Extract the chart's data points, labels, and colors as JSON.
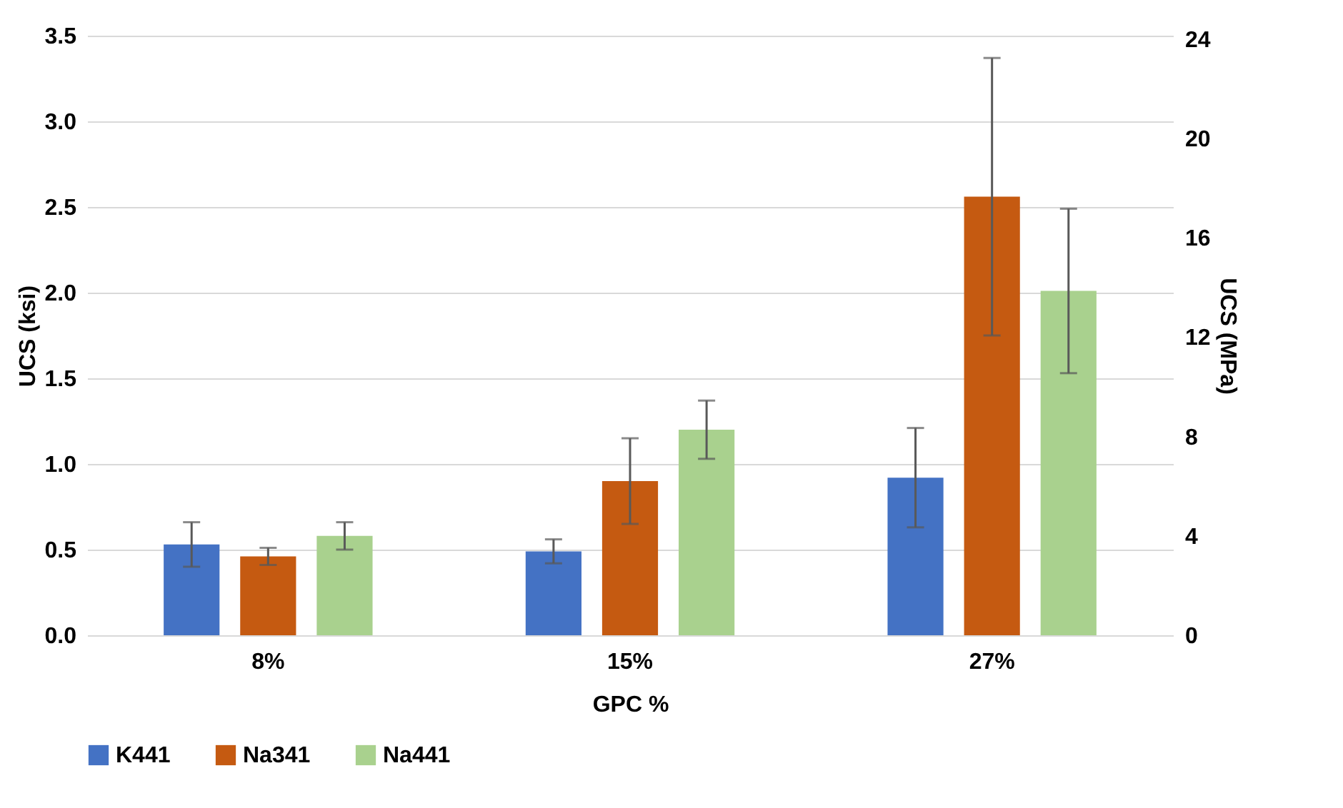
{
  "chart_data": {
    "type": "bar",
    "xlabel": "GPC %",
    "ylabel": "UCS (ksi)",
    "y2label": "UCS (MPa)",
    "categories": [
      "8%",
      "15%",
      "27%"
    ],
    "series": [
      {
        "name": "K441",
        "color": "#4472c4",
        "values": [
          0.53,
          0.49,
          0.92
        ],
        "errors": [
          0.13,
          0.07,
          0.29
        ]
      },
      {
        "name": "Na341",
        "color": "#c55a11",
        "values": [
          0.46,
          0.9,
          2.56
        ],
        "errors": [
          0.05,
          0.25,
          0.81
        ]
      },
      {
        "name": "Na441",
        "color": "#a9d18e",
        "values": [
          0.58,
          1.2,
          2.01
        ],
        "errors": [
          0.08,
          0.17,
          0.48
        ]
      }
    ],
    "ylim": [
      0,
      3.5
    ],
    "yticks": [
      {
        "value": 0,
        "label": "0.0"
      },
      0.5,
      {
        "value": 1,
        "label": "1.0"
      },
      1.5,
      {
        "value": 2,
        "label": "2.0"
      },
      2.5,
      {
        "value": 3,
        "label": "3.0"
      },
      3.5
    ],
    "y2lim": [
      0,
      24.13
    ],
    "y2ticks": [
      0,
      4,
      8,
      12,
      16,
      20,
      24
    ],
    "grid": "y",
    "legend": "bottom"
  }
}
